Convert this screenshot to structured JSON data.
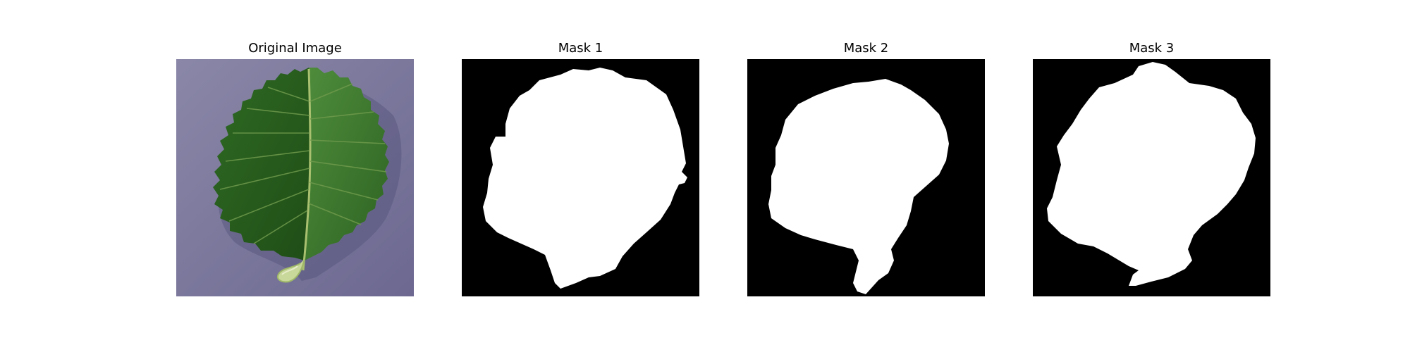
{
  "figure": {
    "panels": [
      {
        "title": "Original Image"
      },
      {
        "title": "Mask 1"
      },
      {
        "title": "Mask 2"
      },
      {
        "title": "Mask 3"
      }
    ]
  }
}
